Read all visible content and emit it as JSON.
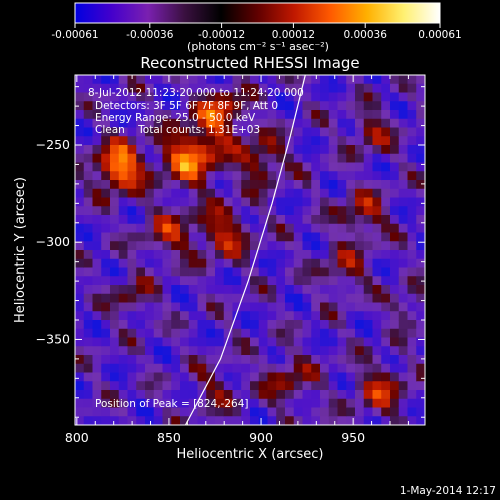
{
  "colorbar": {
    "tick_labels": [
      "-0.00061",
      "-0.00036",
      "-0.00012",
      "0.00012",
      "0.00036",
      "0.00061"
    ],
    "unit_label": "(photons cm⁻² s⁻¹ asec⁻²)",
    "colors": [
      "#0000e0",
      "#4400cc",
      "#7a20b0",
      "#3a1040",
      "#000000",
      "#600000",
      "#c01800",
      "#ff5a00",
      "#ffb000",
      "#fff070",
      "#ffffff"
    ]
  },
  "title": "Reconstructed RHESSI Image",
  "annotations": [
    "8-Jul-2012 11:23:20.000 to 11:24:20.000",
    "Detectors: 3F 5F 6F 7F 8F 9F, Att 0",
    "Energy Range: 25.0 - 50.0 keV",
    "Clean    Total counts: 1.31E+03"
  ],
  "peak_label": "Position of Peak = [824,-264]",
  "footer_date": "1-May-2014 12:17",
  "chart_data": {
    "type": "heatmap",
    "title": "Reconstructed RHESSI Image",
    "xlabel": "Heliocentric X (arcsec)",
    "ylabel": "Heliocentric Y (arcsec)",
    "xlim": [
      799,
      989
    ],
    "ylim": [
      -394,
      -214
    ],
    "xticks": [
      800,
      850,
      900,
      950
    ],
    "yticks": [
      -250,
      -300,
      -350
    ],
    "xtick_labels": [
      "800",
      "850",
      "900",
      "950"
    ],
    "ytick_labels": [
      "−250",
      "−300",
      "−350"
    ],
    "colorbar_range": [
      -0.00061,
      0.00061
    ],
    "peak": {
      "x": 824,
      "y": -264
    },
    "limb_line": [
      [
        859,
        -394
      ],
      [
        878,
        -360
      ],
      [
        893,
        -320
      ],
      [
        906,
        -280
      ],
      [
        916,
        -245
      ],
      [
        924,
        -214
      ]
    ],
    "sources": [
      {
        "x": 823,
        "y": -264,
        "peak": 1.0,
        "width": 9
      },
      {
        "x": 862,
        "y": -258,
        "peak": 0.85,
        "width": 11
      },
      {
        "x": 878,
        "y": -235,
        "peak": 0.7,
        "width": 9
      },
      {
        "x": 880,
        "y": -300,
        "peak": 0.55,
        "width": 10
      },
      {
        "x": 850,
        "y": -300,
        "peak": 0.45,
        "width": 10
      },
      {
        "x": 900,
        "y": -260,
        "peak": 0.55,
        "width": 9
      },
      {
        "x": 960,
        "y": -245,
        "peak": 0.45,
        "width": 8
      },
      {
        "x": 955,
        "y": -290,
        "peak": 0.5,
        "width": 9
      },
      {
        "x": 945,
        "y": -320,
        "peak": 0.4,
        "width": 9
      },
      {
        "x": 965,
        "y": -385,
        "peak": 0.5,
        "width": 10
      },
      {
        "x": 915,
        "y": -380,
        "peak": 0.4,
        "width": 10
      },
      {
        "x": 830,
        "y": -335,
        "peak": 0.35,
        "width": 8
      },
      {
        "x": 875,
        "y": -385,
        "peak": 0.3,
        "width": 9
      },
      {
        "x": 980,
        "y": -340,
        "peak": 0.35,
        "width": 7
      }
    ]
  }
}
